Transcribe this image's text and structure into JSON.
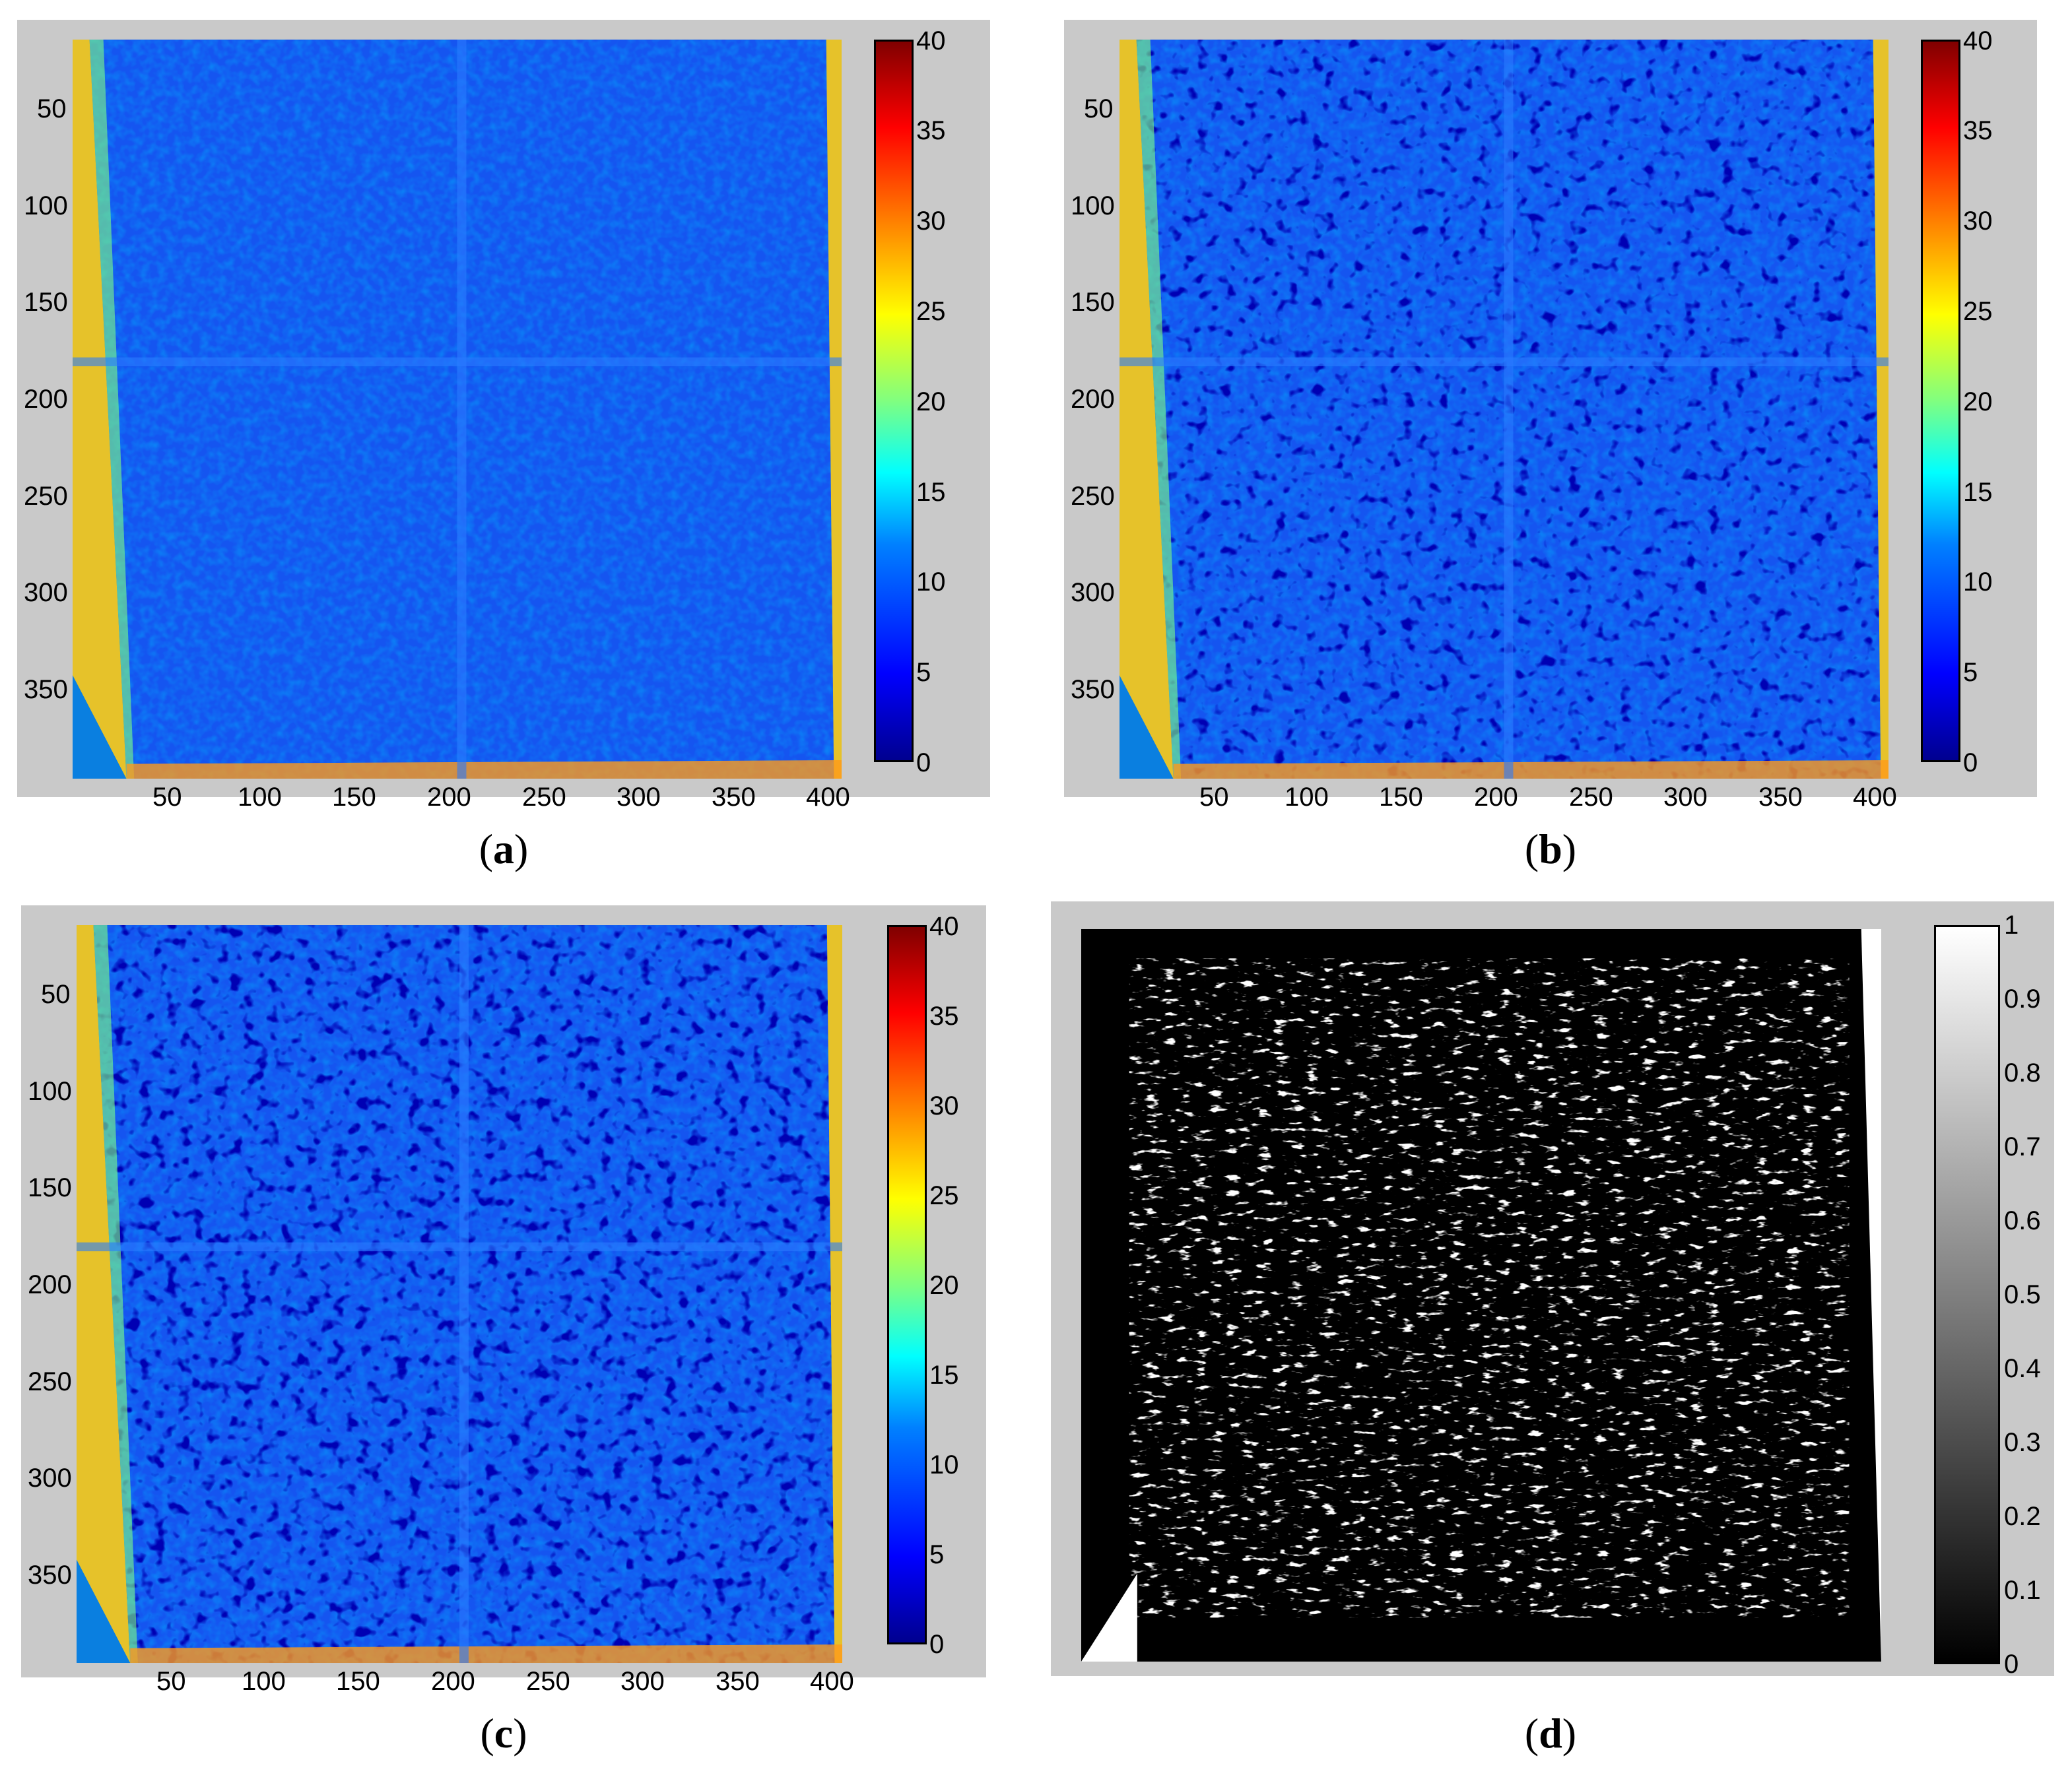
{
  "panels": [
    {
      "id": "a",
      "label": "a",
      "kind": "heatmap",
      "y_ticks": [
        "50",
        "100",
        "150",
        "200",
        "250",
        "300",
        "350"
      ],
      "x_ticks": [
        "50",
        "100",
        "150",
        "200",
        "250",
        "300",
        "350",
        "400"
      ],
      "colorbar_ticks": [
        "40",
        "35",
        "30",
        "25",
        "20",
        "15",
        "10",
        "5",
        "0"
      ]
    },
    {
      "id": "b",
      "label": "b",
      "kind": "heatmap",
      "y_ticks": [
        "50",
        "100",
        "150",
        "200",
        "250",
        "300",
        "350"
      ],
      "x_ticks": [
        "50",
        "100",
        "150",
        "200",
        "250",
        "300",
        "350",
        "400"
      ],
      "colorbar_ticks": [
        "40",
        "35",
        "30",
        "25",
        "20",
        "15",
        "10",
        "5",
        "0"
      ]
    },
    {
      "id": "c",
      "label": "c",
      "kind": "heatmap",
      "y_ticks": [
        "50",
        "100",
        "150",
        "200",
        "250",
        "300",
        "350"
      ],
      "x_ticks": [
        "50",
        "100",
        "150",
        "200",
        "250",
        "300",
        "350",
        "400"
      ],
      "colorbar_ticks": [
        "40",
        "35",
        "30",
        "25",
        "20",
        "15",
        "10",
        "5",
        "0"
      ]
    },
    {
      "id": "d",
      "label": "d",
      "kind": "binary",
      "colorbar_ticks": [
        "1",
        "0.9",
        "0.8",
        "0.7",
        "0.6",
        "0.5",
        "0.4",
        "0.3",
        "0.2",
        "0.1",
        "0"
      ]
    }
  ],
  "colors": {
    "panel_bg": "#c9c9c9",
    "jet": [
      "#00008f",
      "#0000ff",
      "#0080ff",
      "#00ffff",
      "#80ff80",
      "#ffff00",
      "#ff8000",
      "#ff0000",
      "#800000"
    ],
    "binary_dark": "#000000",
    "binary_light": "#ffffff"
  }
}
